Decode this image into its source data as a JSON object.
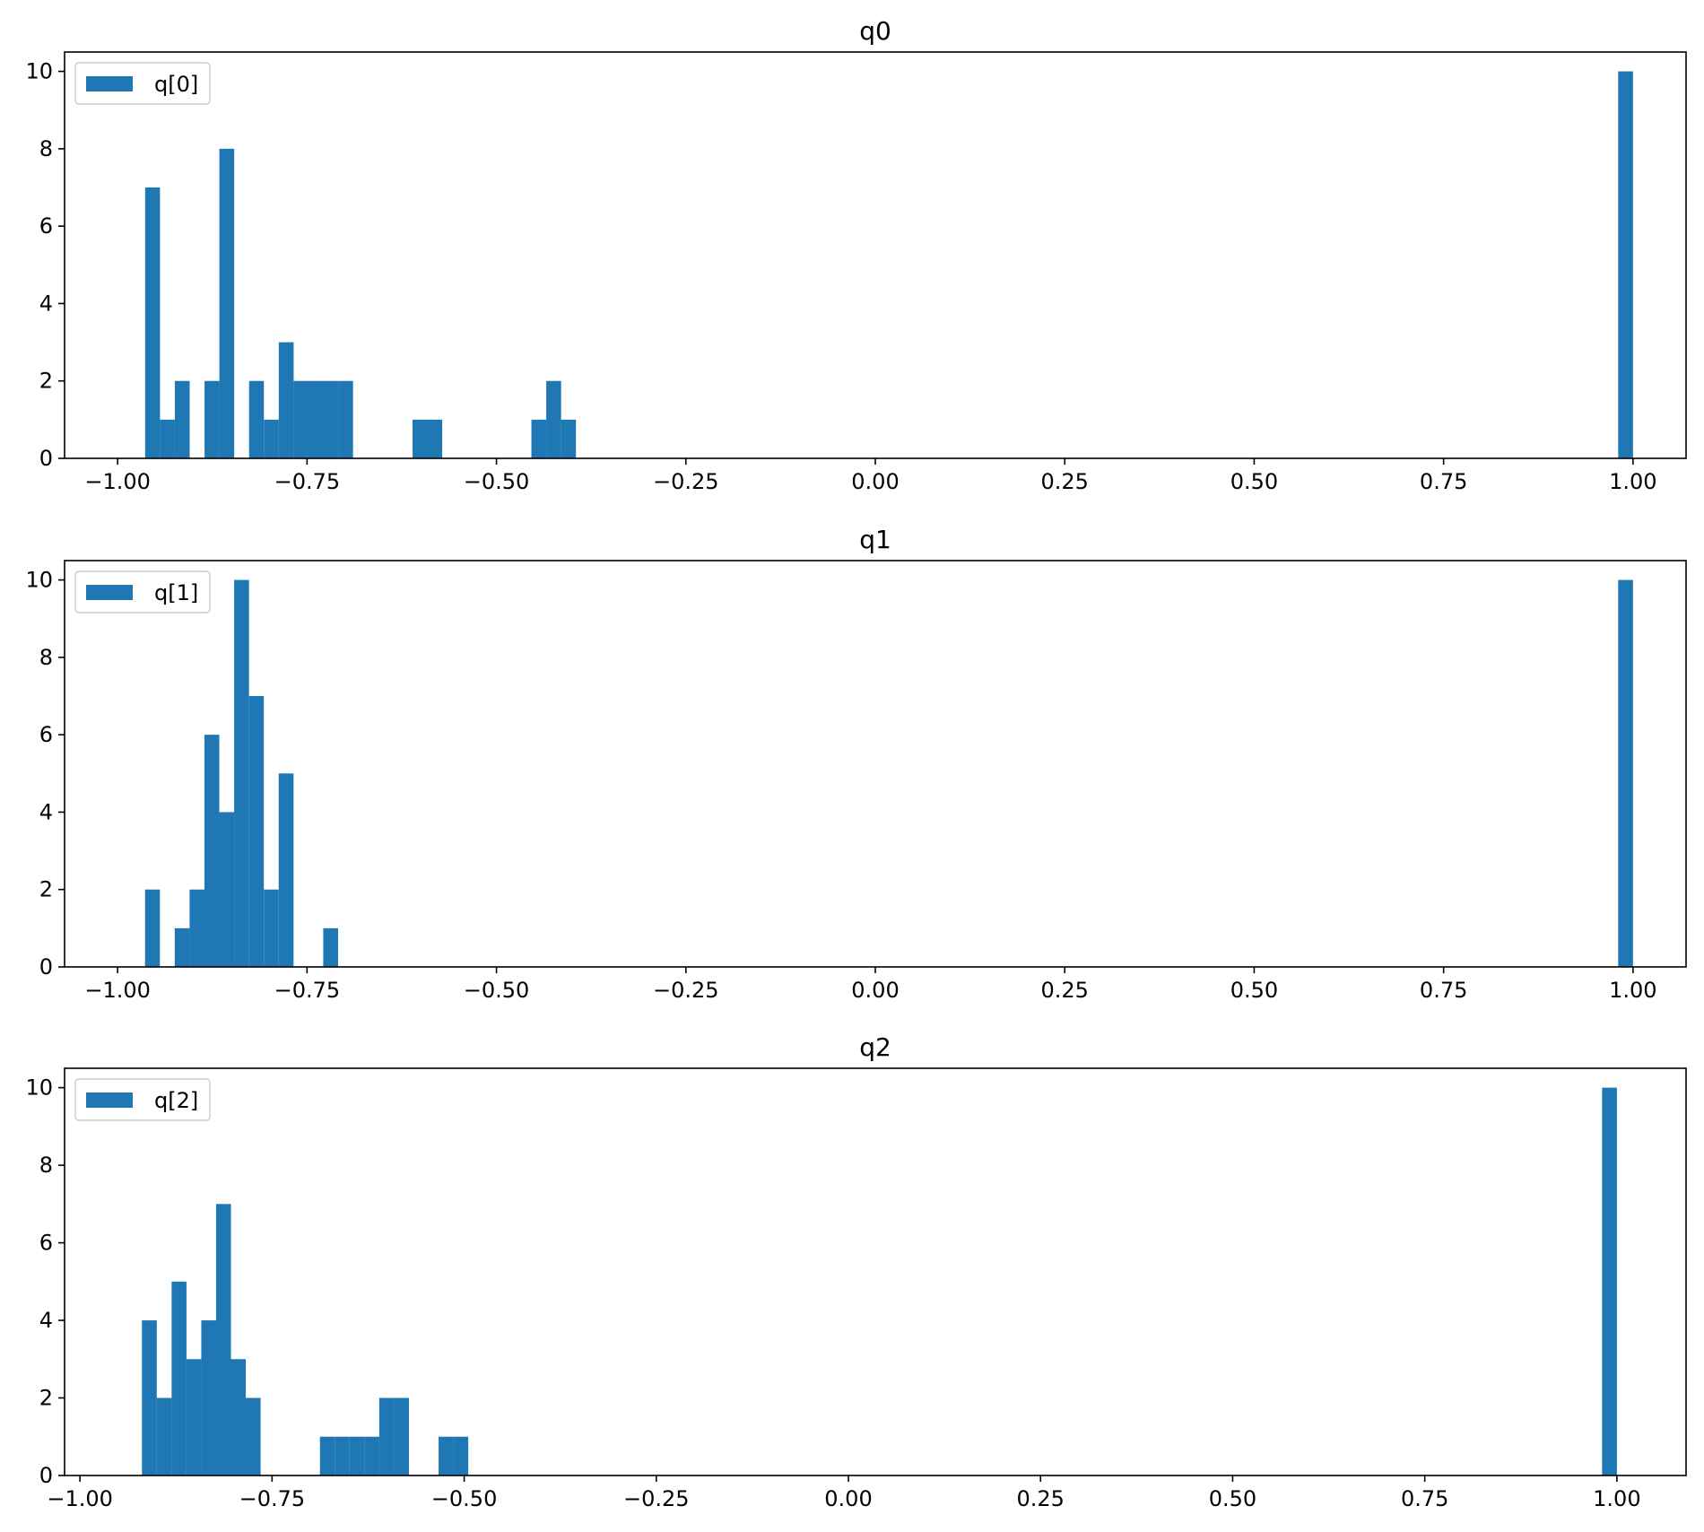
{
  "colors": {
    "bar": "#1f77b4",
    "axes": "#000000",
    "legend_border": "#cccccc",
    "background": "#ffffff"
  },
  "chart_data": [
    {
      "type": "bar",
      "title": "q0",
      "xlabel": "",
      "ylabel": "",
      "series": [
        {
          "name": "q[0]"
        }
      ],
      "legend": "top-left",
      "grid": false,
      "xlim": [
        -1.07,
        1.07
      ],
      "ylim": [
        0,
        10.5
      ],
      "xticks": [
        -1.0,
        -0.75,
        -0.5,
        -0.25,
        0.0,
        0.25,
        0.5,
        0.75,
        1.0
      ],
      "xtick_labels": [
        "−1.00",
        "−0.75",
        "−0.50",
        "−0.25",
        "0.00",
        "0.25",
        "0.50",
        "0.75",
        "1.00"
      ],
      "yticks": [
        0,
        2,
        4,
        6,
        8,
        10
      ],
      "ytick_labels": [
        "0",
        "2",
        "4",
        "6",
        "8",
        "10"
      ],
      "bin_width": 0.0196,
      "bins": [
        {
          "x0": -0.9637,
          "count": 7
        },
        {
          "x0": -0.9441,
          "count": 1
        },
        {
          "x0": -0.9245,
          "count": 2
        },
        {
          "x0": -0.8853,
          "count": 2
        },
        {
          "x0": -0.8657,
          "count": 8
        },
        {
          "x0": -0.8265,
          "count": 2
        },
        {
          "x0": -0.8069,
          "count": 1
        },
        {
          "x0": -0.7873,
          "count": 3
        },
        {
          "x0": -0.7677,
          "count": 2
        },
        {
          "x0": -0.7481,
          "count": 2
        },
        {
          "x0": -0.7285,
          "count": 2
        },
        {
          "x0": -0.7089,
          "count": 2
        },
        {
          "x0": -0.6108,
          "count": 1
        },
        {
          "x0": -0.5912,
          "count": 1
        },
        {
          "x0": -0.4539,
          "count": 1
        },
        {
          "x0": -0.4343,
          "count": 2
        },
        {
          "x0": -0.4147,
          "count": 1
        },
        {
          "x0": 0.9804,
          "count": 10
        }
      ]
    },
    {
      "type": "bar",
      "title": "q1",
      "xlabel": "",
      "ylabel": "",
      "series": [
        {
          "name": "q[1]"
        }
      ],
      "legend": "top-left",
      "grid": false,
      "xlim": [
        -1.07,
        1.07
      ],
      "ylim": [
        0,
        10.5
      ],
      "xticks": [
        -1.0,
        -0.75,
        -0.5,
        -0.25,
        0.0,
        0.25,
        0.5,
        0.75,
        1.0
      ],
      "xtick_labels": [
        "−1.00",
        "−0.75",
        "−0.50",
        "−0.25",
        "0.00",
        "0.25",
        "0.50",
        "0.75",
        "1.00"
      ],
      "yticks": [
        0,
        2,
        4,
        6,
        8,
        10
      ],
      "ytick_labels": [
        "0",
        "2",
        "4",
        "6",
        "8",
        "10"
      ],
      "bin_width": 0.0196,
      "bins": [
        {
          "x0": -0.9638,
          "count": 2
        },
        {
          "x0": -0.9246,
          "count": 1
        },
        {
          "x0": -0.905,
          "count": 2
        },
        {
          "x0": -0.8854,
          "count": 6
        },
        {
          "x0": -0.8658,
          "count": 4
        },
        {
          "x0": -0.8462,
          "count": 10
        },
        {
          "x0": -0.8266,
          "count": 7
        },
        {
          "x0": -0.807,
          "count": 2
        },
        {
          "x0": -0.7874,
          "count": 5
        },
        {
          "x0": -0.7286,
          "count": 1
        },
        {
          "x0": 0.9804,
          "count": 10
        }
      ]
    },
    {
      "type": "bar",
      "title": "q2",
      "xlabel": "",
      "ylabel": "",
      "series": [
        {
          "name": "q[2]"
        }
      ],
      "legend": "top-left",
      "grid": false,
      "xlim": [
        -1.02,
        1.09
      ],
      "ylim": [
        0,
        10.5
      ],
      "xticks": [
        -1.0,
        -0.75,
        -0.5,
        -0.25,
        0.0,
        0.25,
        0.5,
        0.75,
        1.0
      ],
      "xtick_labels": [
        "−1.00",
        "−0.75",
        "−0.50",
        "−0.25",
        "0.00",
        "0.25",
        "0.50",
        "0.75",
        "1.00"
      ],
      "yticks": [
        0,
        2,
        4,
        6,
        8,
        10
      ],
      "ytick_labels": [
        "0",
        "2",
        "4",
        "6",
        "8",
        "10"
      ],
      "bin_width": 0.0193,
      "bins": [
        {
          "x0": -0.9193,
          "count": 4
        },
        {
          "x0": -0.9,
          "count": 2
        },
        {
          "x0": -0.8807,
          "count": 5
        },
        {
          "x0": -0.8614,
          "count": 3
        },
        {
          "x0": -0.8421,
          "count": 4
        },
        {
          "x0": -0.8228,
          "count": 7
        },
        {
          "x0": -0.8035,
          "count": 3
        },
        {
          "x0": -0.7842,
          "count": 2
        },
        {
          "x0": -0.6877,
          "count": 1
        },
        {
          "x0": -0.6684,
          "count": 1
        },
        {
          "x0": -0.6491,
          "count": 1
        },
        {
          "x0": -0.6298,
          "count": 1
        },
        {
          "x0": -0.6105,
          "count": 2
        },
        {
          "x0": -0.5912,
          "count": 2
        },
        {
          "x0": -0.5333,
          "count": 1
        },
        {
          "x0": -0.514,
          "count": 1
        },
        {
          "x0": 0.9807,
          "count": 10
        }
      ]
    }
  ]
}
